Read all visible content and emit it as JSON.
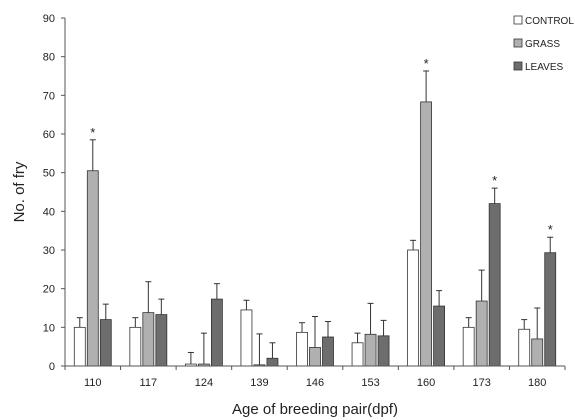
{
  "chart_data": {
    "type": "bar",
    "xlabel": "Age of breeding pair(dpf)",
    "ylabel": "No. of fry",
    "ylim": [
      0,
      90
    ],
    "yticks": [
      0,
      10,
      20,
      30,
      40,
      50,
      60,
      70,
      80,
      90
    ],
    "categories": [
      "110",
      "117",
      "124",
      "139",
      "146",
      "153",
      "160",
      "173",
      "180"
    ],
    "legend_position": "top-right",
    "grid": false,
    "significance_marker": "*",
    "series": [
      {
        "name": "CONTROL",
        "color": "#ffffff",
        "values": [
          10,
          10,
          0.5,
          14.5,
          8.7,
          6,
          30,
          10,
          9.5
        ],
        "errors": [
          2.5,
          2.5,
          3,
          2.5,
          2.5,
          2.5,
          2.5,
          2.5,
          2.5
        ],
        "significant": [
          false,
          false,
          false,
          false,
          false,
          false,
          false,
          false,
          false
        ]
      },
      {
        "name": "GRASS",
        "color": "#b0b0b0",
        "values": [
          50.5,
          13.8,
          0.5,
          0.3,
          4.8,
          8.2,
          68.3,
          16.8,
          7
        ],
        "errors": [
          8,
          8,
          8,
          8,
          8,
          8,
          8,
          8,
          8
        ],
        "significant": [
          true,
          false,
          false,
          false,
          false,
          false,
          true,
          false,
          false
        ]
      },
      {
        "name": "LEAVES",
        "color": "#6d6d6d",
        "values": [
          12,
          13.3,
          17.3,
          2,
          7.5,
          7.8,
          15.5,
          42,
          29.3
        ],
        "errors": [
          4,
          4,
          4,
          4,
          4,
          4,
          4,
          4,
          4
        ],
        "significant": [
          false,
          false,
          false,
          false,
          false,
          false,
          false,
          true,
          true
        ]
      }
    ]
  }
}
